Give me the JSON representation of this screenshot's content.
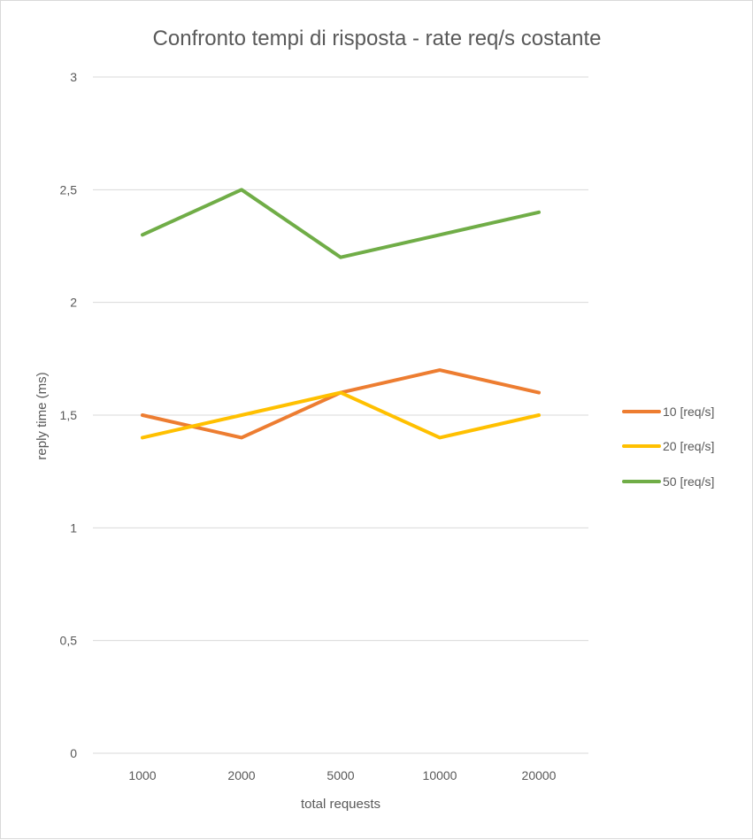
{
  "chart_data": {
    "type": "line",
    "title": "Confronto tempi di risposta - rate req/s costante",
    "xlabel": "total requests",
    "ylabel": "reply time (ms)",
    "categories": [
      "1000",
      "2000",
      "5000",
      "10000",
      "20000"
    ],
    "ylim": [
      0,
      3
    ],
    "yticks": [
      "0",
      "0,5",
      "1",
      "1,5",
      "2",
      "2,5",
      "3"
    ],
    "ytick_values": [
      0,
      0.5,
      1,
      1.5,
      2,
      2.5,
      3
    ],
    "grid": true,
    "legend_position": "right",
    "series": [
      {
        "name": "10 [req/s]",
        "color": "#ed7d31",
        "values": [
          1.5,
          1.4,
          1.6,
          1.7,
          1.6
        ]
      },
      {
        "name": "20 [req/s]",
        "color": "#ffc000",
        "values": [
          1.4,
          1.5,
          1.6,
          1.4,
          1.5
        ]
      },
      {
        "name": "50 [req/s]",
        "color": "#70ad47",
        "values": [
          2.3,
          2.5,
          2.2,
          2.3,
          2.4
        ]
      }
    ]
  }
}
